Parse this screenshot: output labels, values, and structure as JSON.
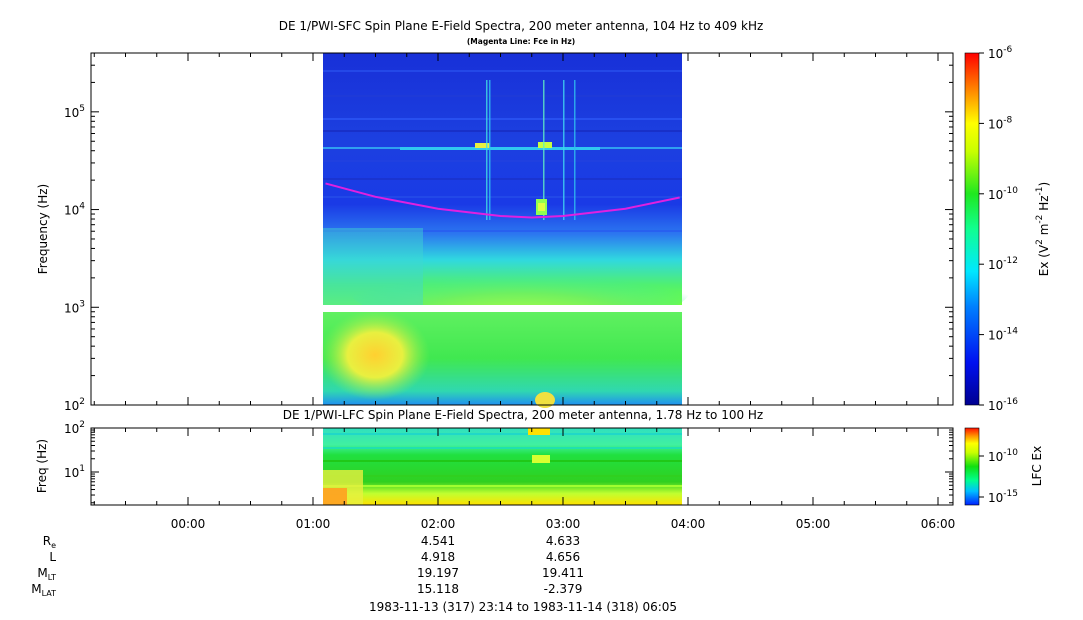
{
  "chart_data": [
    {
      "type": "heatmap",
      "title": "DE 1/PWI-SFC  Spin Plane E-Field Spectra, 200 meter antenna, 104 Hz to 409 kHz",
      "subtitle": "(Magenta Line: Fce in Hz)",
      "ylabel": "Frequency (Hz)",
      "yscale": "log",
      "ylim": [
        100,
        400000
      ],
      "ytick_labels": [
        "10",
        "10",
        "10",
        "10"
      ],
      "ytick_exponents": [
        "2",
        "3",
        "4",
        "5"
      ],
      "data_time_range": [
        "01:06",
        "03:56"
      ],
      "data_gap_hz": [
        1000,
        900
      ],
      "fce_curve": {
        "label": "Fce",
        "color": "#e020e0",
        "time": [
          "01:06",
          "01:30",
          "02:00",
          "02:30",
          "02:45",
          "03:00",
          "03:30",
          "03:56"
        ],
        "hz": [
          18500,
          13500,
          10200,
          8600,
          8300,
          8600,
          10200,
          13300
        ]
      },
      "colorbar": {
        "label_parts": [
          "Ex (V",
          "2",
          " m",
          "-2",
          " Hz",
          "-1",
          ")"
        ],
        "scale": "log",
        "range": [
          1e-16,
          1e-06
        ],
        "tick_labels": [
          "10",
          "10",
          "10",
          "10",
          "10",
          "10"
        ],
        "tick_exponents": [
          "-16",
          "-14",
          "-12",
          "-10",
          "-8",
          "-6"
        ]
      }
    },
    {
      "type": "heatmap",
      "title": "DE 1/PWI-LFC  Spin Plane E-Field Spectra, 200 meter antenna, 1.78 Hz to 100 Hz",
      "ylabel": "Freq (Hz)",
      "yscale": "log",
      "ylim": [
        1.78,
        100
      ],
      "ytick_labels": [
        "10",
        "10"
      ],
      "ytick_exponents": [
        "1",
        "2"
      ],
      "data_time_range": [
        "01:06",
        "03:56"
      ],
      "colorbar": {
        "label": "LFC Ex",
        "scale": "log",
        "tick_labels": [
          "10",
          "10"
        ],
        "tick_exponents": [
          "-15",
          "-10"
        ]
      }
    }
  ],
  "time_axis": {
    "tick_labels": [
      "00:00",
      "01:00",
      "02:00",
      "03:00",
      "04:00",
      "05:00",
      "06:00"
    ],
    "range_label": "1983-11-13 (317) 23:14 to 1983-11-14 (318) 06:05"
  },
  "ephemeris": {
    "rows": [
      {
        "label": "R",
        "sub": "e",
        "values": [
          "4.541",
          "4.633"
        ]
      },
      {
        "label": "L",
        "sub": "",
        "values": [
          "4.918",
          "4.656"
        ]
      },
      {
        "label": "M",
        "sub": "LT",
        "values": [
          "19.197",
          "19.411"
        ]
      },
      {
        "label": "M",
        "sub": "LAT",
        "values": [
          "15.118",
          "-2.379"
        ]
      }
    ]
  }
}
